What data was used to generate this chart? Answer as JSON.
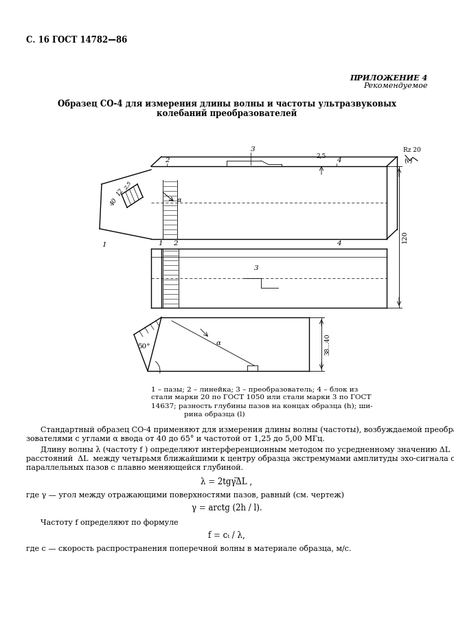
{
  "page_header_left": "С. 16 ГОСТ 14782—86",
  "page_header_right_line1": "ПРИЛОЖЕНИЕ 4",
  "page_header_right_line2": "Рекомендуемое",
  "title_line1": "Образец СО-4 для измерения длины волны и частоты ультразвуковых",
  "title_line2": "колебаний преобразователей",
  "bg_color": "#ffffff",
  "text_color": "#000000"
}
